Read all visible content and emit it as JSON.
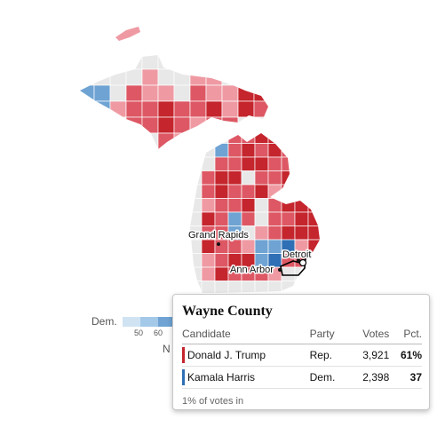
{
  "colors": {
    "rep_dark": "#c5252d",
    "rep_mid": "#dd5864",
    "rep_light": "#ef9aa3",
    "dem_mid": "#6fa3d3",
    "dem_dark": "#2f6fb5",
    "gray": "#e8e8e8"
  },
  "map": {
    "cities": [
      "Grand Rapids",
      "Detroit",
      "Ann Arbor"
    ]
  },
  "legend": {
    "label": "Dem.",
    "ticks": [
      "50",
      "60"
    ],
    "cut_text": "N",
    "swatches": [
      "#cfe3f3",
      "#a4c9e8",
      "#6fa3d3",
      "#2f6fb5"
    ]
  },
  "tooltip": {
    "title": "Wayne County",
    "headers": {
      "candidate": "Candidate",
      "party": "Party",
      "votes": "Votes",
      "pct": "Pct."
    },
    "rows": [
      {
        "candidate": "Donald J. Trump",
        "party": "Rep.",
        "votes": "3,921",
        "pct": "61%",
        "color": "#c5252d"
      },
      {
        "candidate": "Kamala Harris",
        "party": "Dem.",
        "votes": "2,398",
        "pct": "37",
        "color": "#2f6fb5"
      }
    ],
    "footer": "1% of votes in"
  }
}
